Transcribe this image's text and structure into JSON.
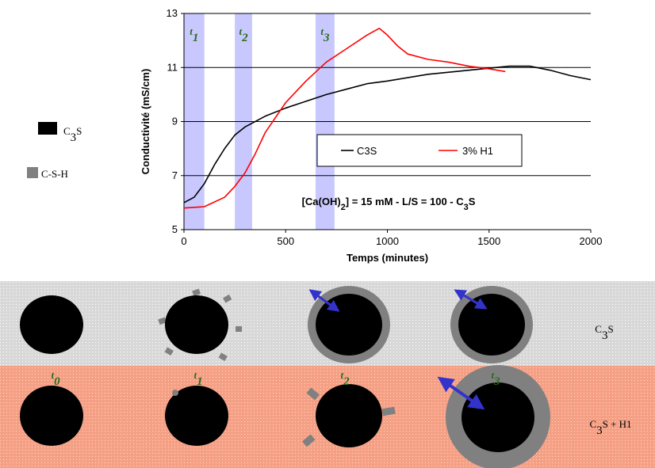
{
  "chart_data": {
    "type": "line",
    "y_label": "Conductivité (mS/cm)",
    "x_label": "Temps (minutes)",
    "xlim": [
      0,
      2000
    ],
    "xticks": [
      0,
      500,
      1000,
      1500,
      2000
    ],
    "ylim": [
      5,
      13
    ],
    "yticks": [
      5,
      7,
      9,
      11,
      13
    ],
    "grid": true,
    "legend_position": "lower right",
    "series": [
      {
        "name": "C3S",
        "color": "#000000",
        "x": [
          0,
          50,
          100,
          150,
          200,
          250,
          300,
          400,
          500,
          600,
          700,
          800,
          900,
          1000,
          1200,
          1400,
          1600,
          1700,
          1800,
          1900,
          2000
        ],
        "values": [
          6.0,
          6.2,
          6.7,
          7.4,
          8.0,
          8.5,
          8.8,
          9.2,
          9.5,
          9.75,
          10.0,
          10.2,
          10.4,
          10.5,
          10.75,
          10.9,
          11.05,
          11.05,
          10.9,
          10.7,
          10.55
        ]
      },
      {
        "name": "3% H1",
        "color": "#ff0000",
        "x": [
          0,
          100,
          200,
          250,
          300,
          350,
          400,
          500,
          600,
          700,
          800,
          900,
          960,
          1000,
          1050,
          1100,
          1200,
          1300,
          1400,
          1500,
          1580
        ],
        "values": [
          5.8,
          5.85,
          6.2,
          6.6,
          7.1,
          7.8,
          8.6,
          9.7,
          10.5,
          11.2,
          11.7,
          12.2,
          12.45,
          12.2,
          11.8,
          11.5,
          11.3,
          11.2,
          11.05,
          10.95,
          10.85
        ]
      }
    ],
    "bands": [
      {
        "label": [
          {
            "text": "t"
          },
          {
            "sub": "1"
          }
        ],
        "start": 0,
        "end": 100,
        "color": "#c8c8ff"
      },
      {
        "label": [
          {
            "text": "t"
          },
          {
            "sub": "2"
          }
        ],
        "start": 250,
        "end": 335,
        "color": "#c8c8ff"
      },
      {
        "label": [
          {
            "text": "t"
          },
          {
            "sub": "3"
          }
        ],
        "start": 647,
        "end": 740,
        "color": "#c8c8ff"
      }
    ],
    "annotation": [
      {
        "text": "[Ca(OH)"
      },
      {
        "sub": "2"
      },
      {
        "text": "] = 15 mM - L/S = 100 - C"
      },
      {
        "sub": "3"
      },
      {
        "text": "S"
      }
    ]
  },
  "legend_left": [
    {
      "label": [
        {
          "text": "C"
        },
        {
          "sub": "3"
        },
        {
          "text": "S"
        }
      ],
      "color": "#000000"
    },
    {
      "label": [
        {
          "text": "C-S-H"
        }
      ],
      "color": "#808080"
    }
  ],
  "diagram": {
    "time_labels": [
      [
        {
          "text": "t"
        },
        {
          "sub": "0"
        }
      ],
      [
        {
          "text": "t"
        },
        {
          "sub": "1"
        }
      ],
      [
        {
          "text": "t"
        },
        {
          "sub": "2"
        }
      ],
      [
        {
          "text": "t"
        },
        {
          "sub": "3"
        }
      ]
    ],
    "rows": [
      {
        "label": [
          {
            "text": "C"
          },
          {
            "sub": "3"
          },
          {
            "text": "S"
          }
        ]
      },
      {
        "label": [
          {
            "text": "C"
          },
          {
            "sub": "3"
          },
          {
            "text": "S + H1"
          }
        ]
      }
    ]
  }
}
